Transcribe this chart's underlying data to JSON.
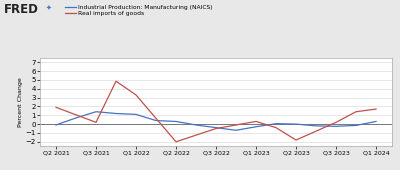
{
  "legend_labels": [
    "Industrial Production: Manufacturing (NAICS)",
    "Real imports of goods"
  ],
  "legend_colors": [
    "#4472c4",
    "#c0504d"
  ],
  "x_labels": [
    "Q2 2021",
    "Q3 2021",
    "Q1 2022",
    "Q2 2022",
    "Q3 2022",
    "Q1 2023",
    "Q2 2023",
    "Q3 2023",
    "Q1 2024"
  ],
  "x_tick_positions": [
    0,
    1,
    2,
    3,
    4,
    5,
    6,
    7,
    8
  ],
  "blue_x": [
    0,
    0.5,
    1,
    1.5,
    2,
    2.5,
    3,
    3.5,
    4,
    4.5,
    5,
    5.5,
    6,
    6.5,
    7,
    7.5,
    8
  ],
  "blue_y": [
    -0.1,
    0.7,
    1.4,
    1.2,
    1.1,
    0.4,
    0.3,
    -0.1,
    -0.4,
    -0.7,
    -0.3,
    0.05,
    0.0,
    -0.2,
    -0.25,
    -0.15,
    0.3
  ],
  "red_x": [
    0,
    1,
    1.5,
    2,
    3,
    4,
    5,
    5.5,
    6,
    7,
    7.5,
    8
  ],
  "red_y": [
    1.9,
    0.2,
    4.85,
    3.3,
    -2.0,
    -0.5,
    0.3,
    -0.4,
    -1.8,
    0.2,
    1.4,
    1.7
  ],
  "ylabel": "Percent Change",
  "ylim": [
    -2.5,
    7.5
  ],
  "yticks": [
    -2,
    -1,
    0,
    1,
    2,
    3,
    4,
    5,
    6,
    7
  ],
  "background_color": "#e8e8e8",
  "plot_bg_color": "#ffffff",
  "grid_color": "#dddddd",
  "zero_line_color": "#777777",
  "xlim": [
    -0.4,
    8.4
  ]
}
